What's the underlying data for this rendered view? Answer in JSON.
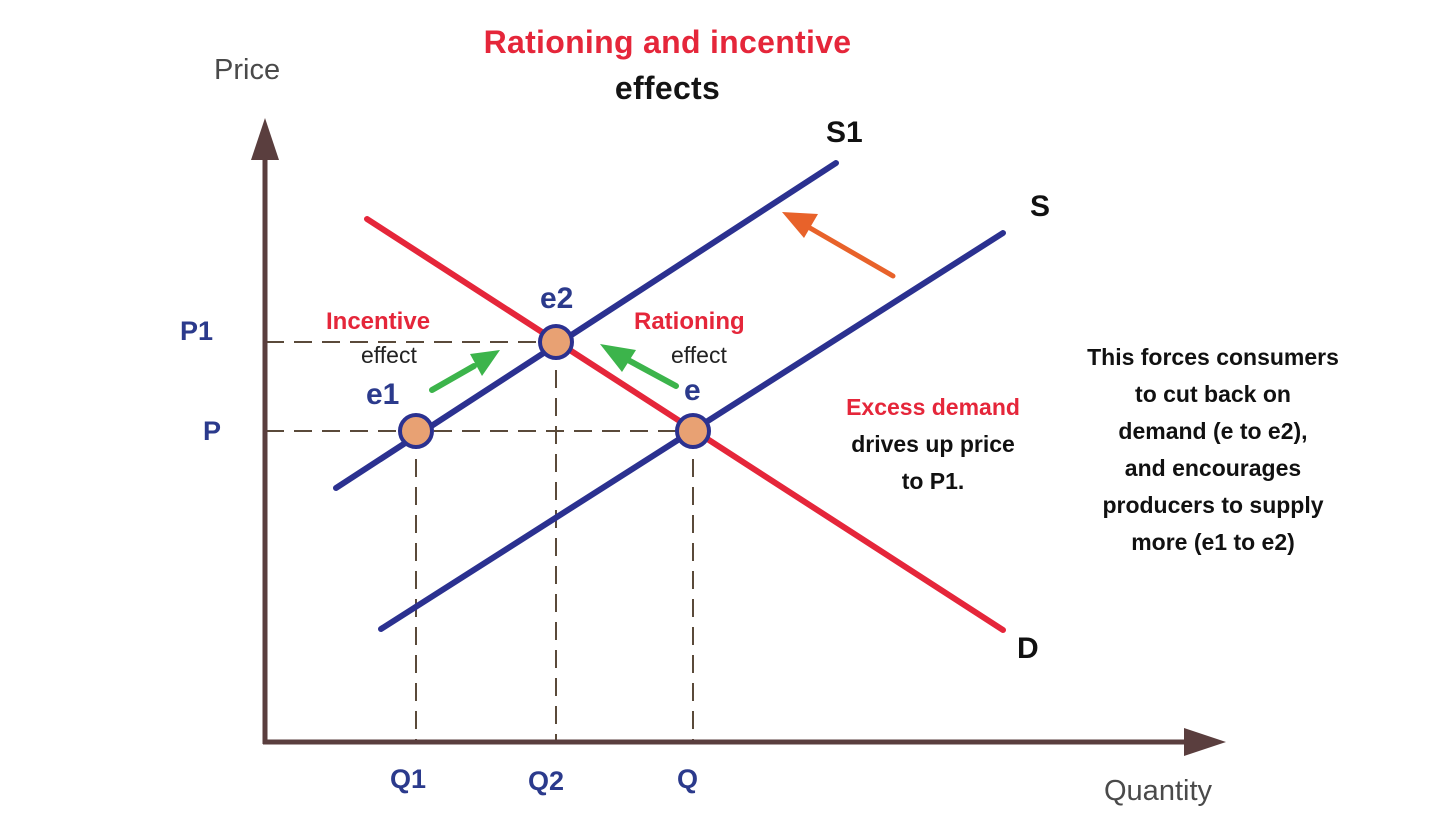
{
  "title": {
    "line1": "Rationing and incentive",
    "line2": "effects"
  },
  "axes": {
    "y_label": "Price",
    "x_label": "Quantity"
  },
  "ticks": {
    "y": [
      "P1",
      "P"
    ],
    "x": [
      "Q1",
      "Q2",
      "Q"
    ]
  },
  "curves": {
    "supply_original": "S",
    "supply_shifted": "S1",
    "demand": "D"
  },
  "points": {
    "e": "e",
    "e1": "e1",
    "e2": "e2"
  },
  "effects": {
    "incentive_title": "Incentive",
    "incentive_sub": "effect",
    "rationing_title": "Rationing",
    "rationing_sub": "effect"
  },
  "notes": {
    "excess_line1": "Excess demand",
    "excess_line2": "drives up price",
    "excess_line3": "to P1.",
    "explain_line1": "This forces consumers",
    "explain_line2": "to cut back on",
    "explain_line3": "demand (e to e2),",
    "explain_line4": "and encourages",
    "explain_line5": "producers to supply",
    "explain_line6": "more (e1 to e2)"
  },
  "colors": {
    "supply": "#2b3190",
    "demand": "#e5263a",
    "axis": "#5a3e3e",
    "point_fill": "#e8a173",
    "point_stroke": "#2b3190",
    "green_arrow": "#3cb44b",
    "orange_arrow": "#e8622a",
    "guide": "#5a4a3a"
  }
}
